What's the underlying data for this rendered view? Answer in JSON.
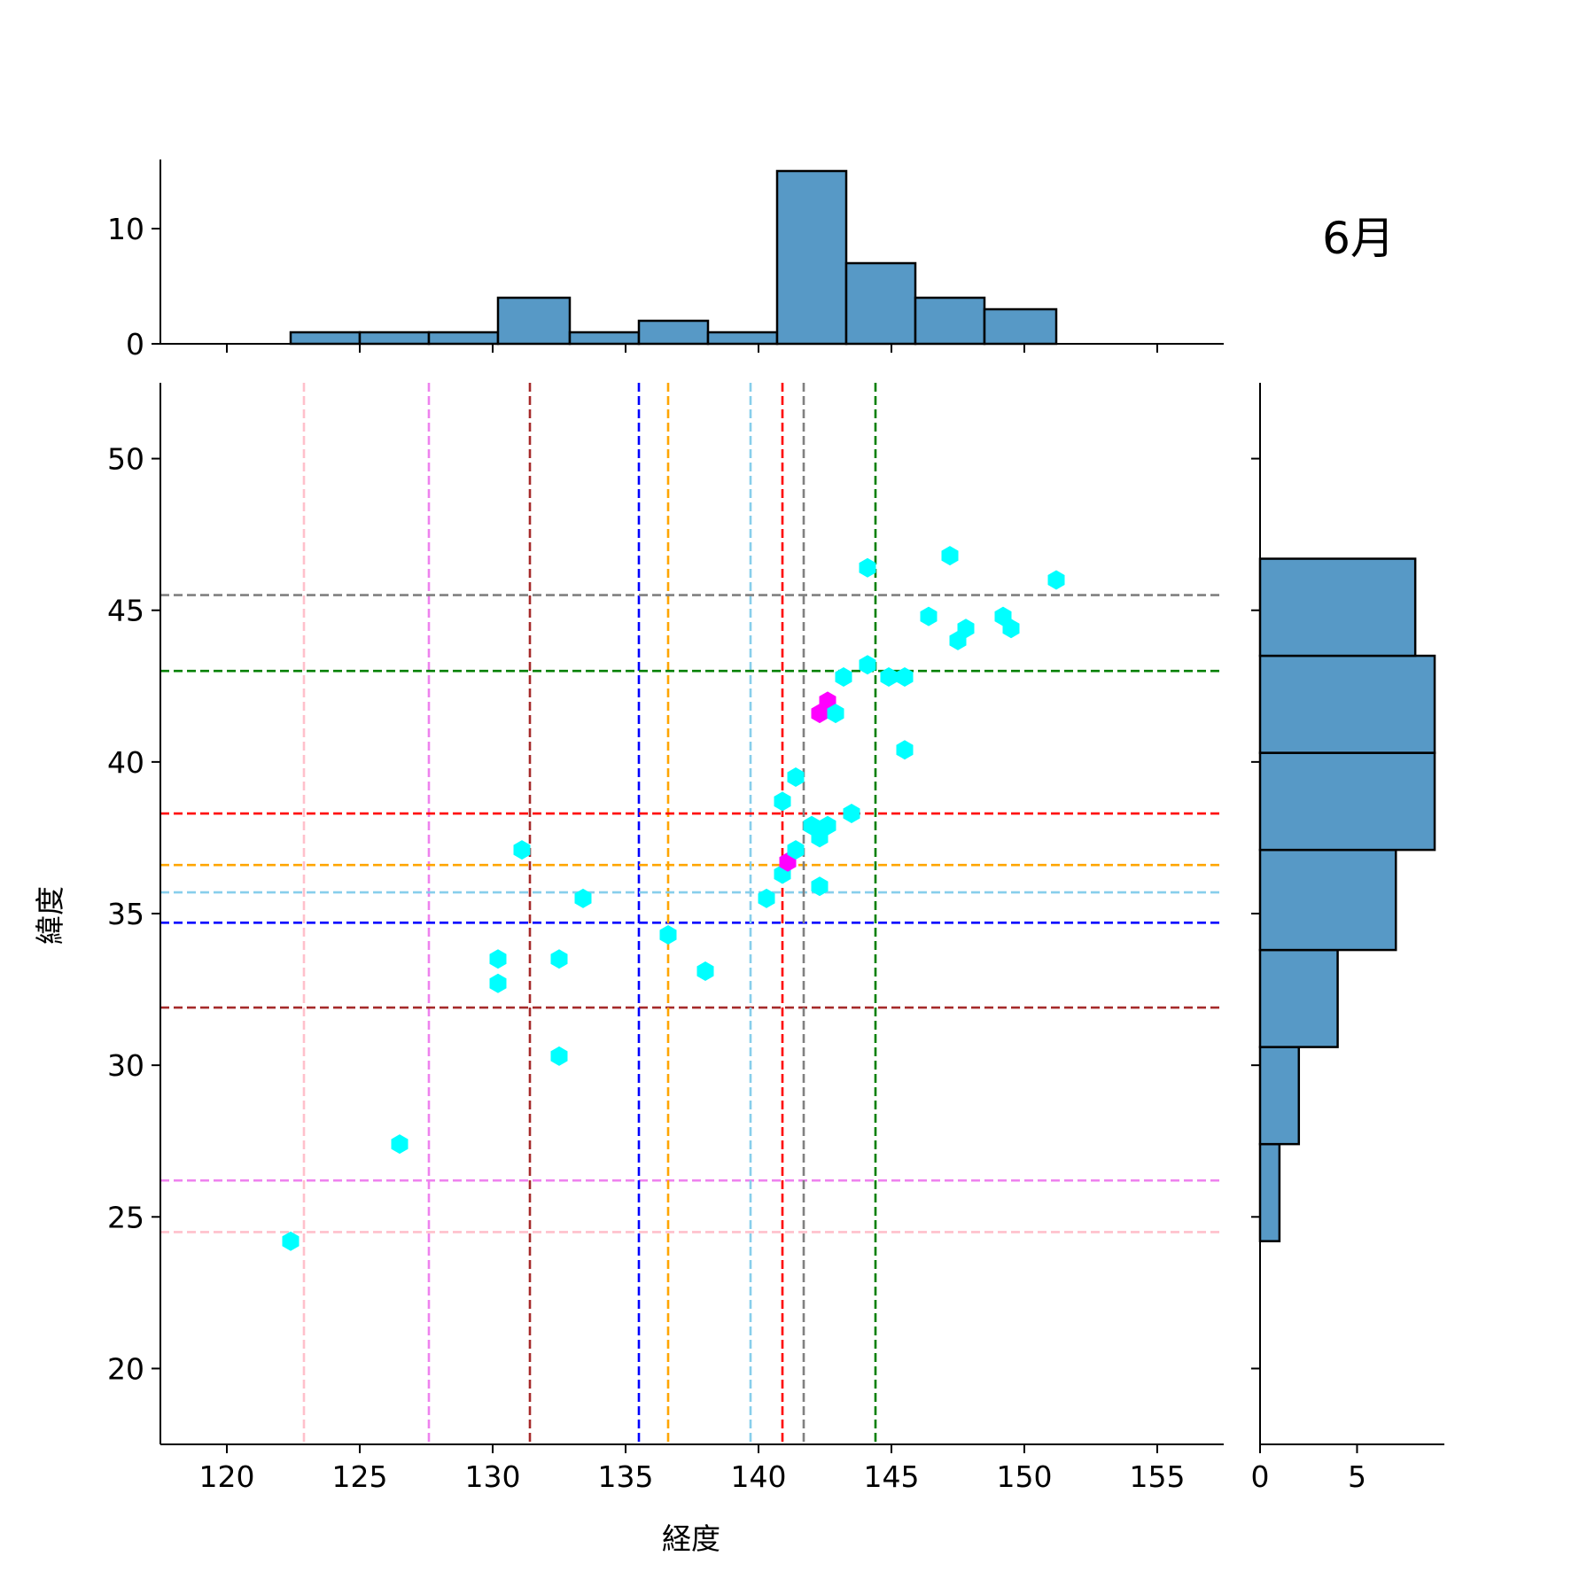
{
  "chart_data": {
    "type": "hexbin-joint",
    "title": "6月",
    "xlabel": "経度",
    "ylabel": "緯度",
    "xlim": [
      117.5,
      157.5
    ],
    "ylim": [
      17.5,
      52.5
    ],
    "x_ticks": [
      120,
      125,
      130,
      135,
      140,
      145,
      150,
      155
    ],
    "y_ticks": [
      20,
      25,
      30,
      35,
      40,
      45,
      50
    ],
    "grid": false,
    "colors": {
      "hex_low": "#00ffff",
      "hex_high": "#ff00ff",
      "hist_fill": "#5799c6",
      "hist_edge": "#000000"
    },
    "hex_points": [
      {
        "x": 122.4,
        "y": 24.2,
        "count": 1
      },
      {
        "x": 126.5,
        "y": 27.4,
        "count": 1
      },
      {
        "x": 130.2,
        "y": 33.5,
        "count": 1
      },
      {
        "x": 130.2,
        "y": 32.7,
        "count": 1
      },
      {
        "x": 131.1,
        "y": 37.1,
        "count": 1
      },
      {
        "x": 132.5,
        "y": 33.5,
        "count": 1
      },
      {
        "x": 132.5,
        "y": 30.3,
        "count": 1
      },
      {
        "x": 133.4,
        "y": 35.5,
        "count": 1
      },
      {
        "x": 136.6,
        "y": 34.3,
        "count": 1
      },
      {
        "x": 138.0,
        "y": 33.1,
        "count": 1
      },
      {
        "x": 140.3,
        "y": 35.5,
        "count": 1
      },
      {
        "x": 140.9,
        "y": 38.7,
        "count": 1
      },
      {
        "x": 140.9,
        "y": 36.3,
        "count": 1
      },
      {
        "x": 141.1,
        "y": 36.7,
        "count": 2
      },
      {
        "x": 141.4,
        "y": 37.1,
        "count": 1
      },
      {
        "x": 141.4,
        "y": 39.5,
        "count": 1
      },
      {
        "x": 142.0,
        "y": 37.9,
        "count": 1
      },
      {
        "x": 142.3,
        "y": 37.5,
        "count": 1
      },
      {
        "x": 142.3,
        "y": 35.9,
        "count": 1
      },
      {
        "x": 142.3,
        "y": 41.6,
        "count": 2
      },
      {
        "x": 142.6,
        "y": 42.0,
        "count": 2
      },
      {
        "x": 142.6,
        "y": 37.9,
        "count": 1
      },
      {
        "x": 142.9,
        "y": 41.6,
        "count": 1
      },
      {
        "x": 143.2,
        "y": 42.8,
        "count": 1
      },
      {
        "x": 143.5,
        "y": 38.3,
        "count": 1
      },
      {
        "x": 144.1,
        "y": 46.4,
        "count": 1
      },
      {
        "x": 144.1,
        "y": 43.2,
        "count": 1
      },
      {
        "x": 144.9,
        "y": 42.8,
        "count": 1
      },
      {
        "x": 145.5,
        "y": 42.8,
        "count": 1
      },
      {
        "x": 145.5,
        "y": 40.4,
        "count": 1
      },
      {
        "x": 146.4,
        "y": 44.8,
        "count": 1
      },
      {
        "x": 147.2,
        "y": 46.8,
        "count": 1
      },
      {
        "x": 147.5,
        "y": 44.0,
        "count": 1
      },
      {
        "x": 147.8,
        "y": 44.4,
        "count": 1
      },
      {
        "x": 149.2,
        "y": 44.8,
        "count": 1
      },
      {
        "x": 149.5,
        "y": 44.4,
        "count": 1
      },
      {
        "x": 151.2,
        "y": 46.0,
        "count": 1
      }
    ],
    "reference_lines": [
      {
        "color": "#ffc0cb",
        "x": 122.9,
        "y": 24.5
      },
      {
        "color": "#ee82ee",
        "x": 127.6,
        "y": 26.2
      },
      {
        "color": "#a52a2a",
        "x": 131.4,
        "y": 31.9
      },
      {
        "color": "#0000ff",
        "x": 135.5,
        "y": 34.7
      },
      {
        "color": "#ffa500",
        "x": 136.6,
        "y": 36.6
      },
      {
        "color": "#87ceeb",
        "x": 139.7,
        "y": 35.7
      },
      {
        "color": "#ff0000",
        "x": 140.9,
        "y": 38.3
      },
      {
        "color": "#808080",
        "x": 141.7,
        "y": 45.5
      },
      {
        "color": "#008000",
        "x": 144.4,
        "y": 43.0
      }
    ],
    "marginal_x": {
      "ylim": [
        0,
        16
      ],
      "y_ticks": [
        0,
        10
      ],
      "bin_edges": [
        122.4,
        125.0,
        127.6,
        130.2,
        132.9,
        135.5,
        138.1,
        140.7,
        143.3,
        145.9,
        148.5,
        151.2
      ],
      "counts": [
        1,
        1,
        1,
        4,
        1,
        2,
        1,
        15,
        7,
        4,
        3
      ]
    },
    "marginal_y": {
      "xlim": [
        0,
        9.5
      ],
      "x_ticks": [
        0,
        5
      ],
      "bin_edges": [
        24.2,
        27.4,
        30.6,
        33.8,
        37.1,
        40.3,
        43.5,
        46.7
      ],
      "counts": [
        1,
        2,
        4,
        7,
        9,
        9,
        8
      ]
    }
  }
}
